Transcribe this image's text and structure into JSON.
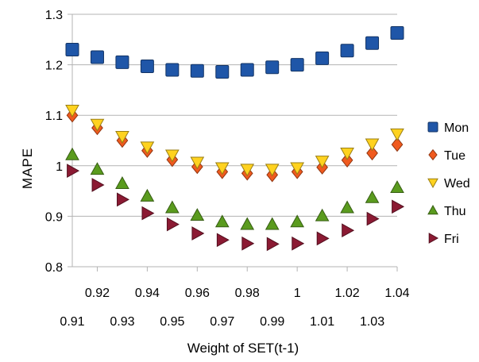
{
  "chart_data": {
    "type": "scatter",
    "title": "",
    "xlabel": "Weight of SET(t-1)",
    "ylabel": "MAPE",
    "xlim": [
      0.91,
      1.04
    ],
    "ylim": [
      0.8,
      1.3
    ],
    "y_ticks": [
      "0.8",
      "0.9",
      "1",
      "1.1",
      "1.2",
      "1.3"
    ],
    "x_ticks_upper": [
      "0.92",
      "0.94",
      "0.96",
      "0.98",
      "1",
      "1.02",
      "1.04"
    ],
    "x_ticks_lower": [
      "0.91",
      "0.93",
      "0.95",
      "0.97",
      "0.99",
      "1.01",
      "1.03"
    ],
    "grid": "horizontal",
    "legend_position": "right",
    "x": [
      0.91,
      0.92,
      0.93,
      0.94,
      0.95,
      0.96,
      0.97,
      0.98,
      0.99,
      1.0,
      1.01,
      1.02,
      1.03,
      1.04
    ],
    "series": [
      {
        "name": "Mon",
        "marker": "square",
        "color": "#1f56a8",
        "values": [
          1.23,
          1.215,
          1.205,
          1.197,
          1.19,
          1.188,
          1.186,
          1.19,
          1.195,
          1.2,
          1.213,
          1.228,
          1.243,
          1.263
        ]
      },
      {
        "name": "Tue",
        "marker": "diamond",
        "color": "#f05a1e",
        "values": [
          1.1,
          1.075,
          1.05,
          1.03,
          1.012,
          0.998,
          0.988,
          0.985,
          0.982,
          0.988,
          0.997,
          1.011,
          1.025,
          1.042
        ]
      },
      {
        "name": "Wed",
        "marker": "triangle-down",
        "color": "#ffd21f",
        "values": [
          1.11,
          1.082,
          1.058,
          1.037,
          1.021,
          1.007,
          0.996,
          0.993,
          0.993,
          0.996,
          1.009,
          1.025,
          1.043,
          1.063
        ]
      },
      {
        "name": "Thu",
        "marker": "triangle-up",
        "color": "#5a9b1e",
        "values": [
          1.022,
          0.993,
          0.965,
          0.94,
          0.917,
          0.902,
          0.889,
          0.884,
          0.884,
          0.889,
          0.901,
          0.917,
          0.937,
          0.957
        ]
      },
      {
        "name": "Fri",
        "marker": "triangle-right",
        "color": "#8b1a33",
        "values": [
          0.99,
          0.962,
          0.933,
          0.906,
          0.884,
          0.866,
          0.853,
          0.846,
          0.845,
          0.846,
          0.856,
          0.872,
          0.895,
          0.919
        ]
      }
    ]
  }
}
